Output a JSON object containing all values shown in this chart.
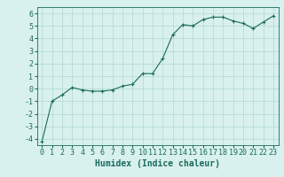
{
  "x": [
    0,
    1,
    2,
    3,
    4,
    5,
    6,
    7,
    8,
    9,
    10,
    11,
    12,
    13,
    14,
    15,
    16,
    17,
    18,
    19,
    20,
    21,
    22,
    23
  ],
  "y": [
    -4.2,
    -1.0,
    -0.5,
    0.1,
    -0.1,
    -0.2,
    -0.2,
    -0.1,
    0.2,
    0.35,
    1.2,
    1.2,
    2.4,
    4.3,
    5.1,
    5.0,
    5.5,
    5.7,
    5.7,
    5.4,
    5.2,
    4.8,
    5.3,
    5.8
  ],
  "line_color": "#1a6b5a",
  "marker": "+",
  "marker_size": 3,
  "background_color": "#d8f0ee",
  "grid_color": "#b0d8d4",
  "xlabel": "Humidex (Indice chaleur)",
  "xlim": [
    -0.5,
    23.5
  ],
  "ylim": [
    -4.5,
    6.5
  ],
  "yticks": [
    -4,
    -3,
    -2,
    -1,
    0,
    1,
    2,
    3,
    4,
    5,
    6
  ],
  "xticks": [
    0,
    1,
    2,
    3,
    4,
    5,
    6,
    7,
    8,
    9,
    10,
    11,
    12,
    13,
    14,
    15,
    16,
    17,
    18,
    19,
    20,
    21,
    22,
    23
  ],
  "tick_color": "#1a6b5a",
  "label_fontsize": 7,
  "tick_fontsize": 6
}
